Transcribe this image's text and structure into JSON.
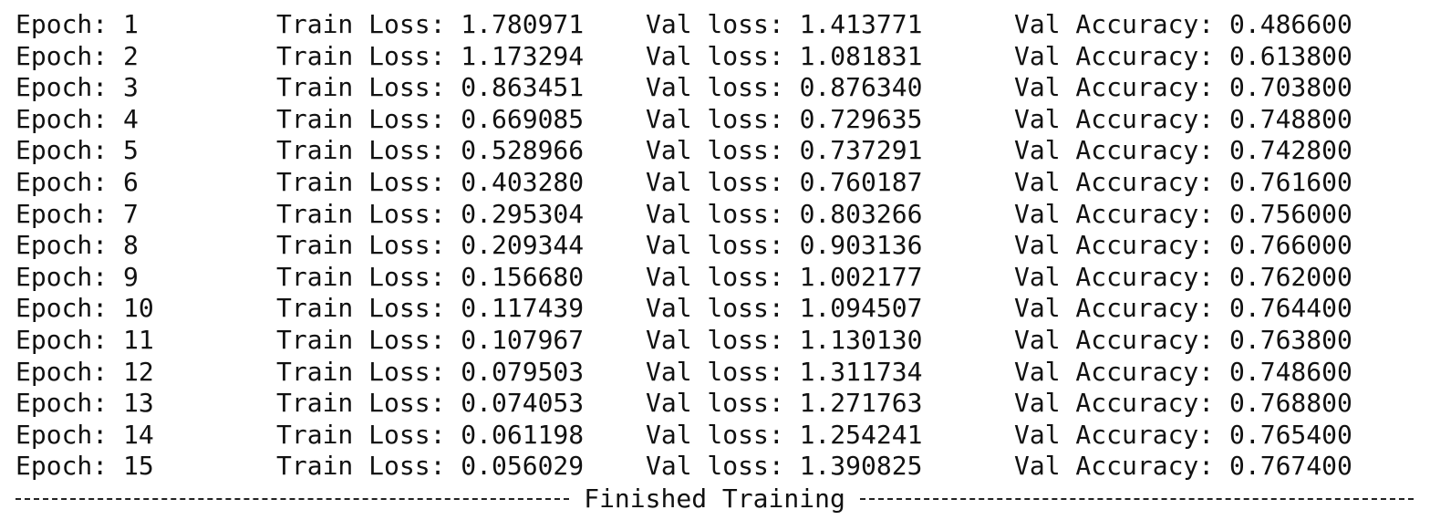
{
  "log": {
    "labels": {
      "epoch": "Epoch:",
      "train_loss": "Train Loss:",
      "val_loss": "Val loss:",
      "val_accuracy": "Val Accuracy:"
    },
    "rows": [
      [
        "1",
        "1.780971",
        "1.413771",
        "0.486600"
      ],
      [
        "2",
        "1.173294",
        "1.081831",
        "0.613800"
      ],
      [
        "3",
        "0.863451",
        "0.876340",
        "0.703800"
      ],
      [
        "4",
        "0.669085",
        "0.729635",
        "0.748800"
      ],
      [
        "5",
        "0.528966",
        "0.737291",
        "0.742800"
      ],
      [
        "6",
        "0.403280",
        "0.760187",
        "0.761600"
      ],
      [
        "7",
        "0.295304",
        "0.803266",
        "0.756000"
      ],
      [
        "8",
        "0.209344",
        "0.903136",
        "0.766000"
      ],
      [
        "9",
        "0.156680",
        "1.002177",
        "0.762000"
      ],
      [
        "10",
        "0.117439",
        "1.094507",
        "0.764400"
      ],
      [
        "11",
        "0.107967",
        "1.130130",
        "0.763800"
      ],
      [
        "12",
        "0.079503",
        "1.311734",
        "0.748600"
      ],
      [
        "13",
        "0.074053",
        "1.271763",
        "0.768800"
      ],
      [
        "14",
        "0.061198",
        "1.254241",
        "0.765400"
      ],
      [
        "15",
        "0.056029",
        "1.390825",
        "0.767400"
      ]
    ],
    "footer": "Finished Training"
  }
}
